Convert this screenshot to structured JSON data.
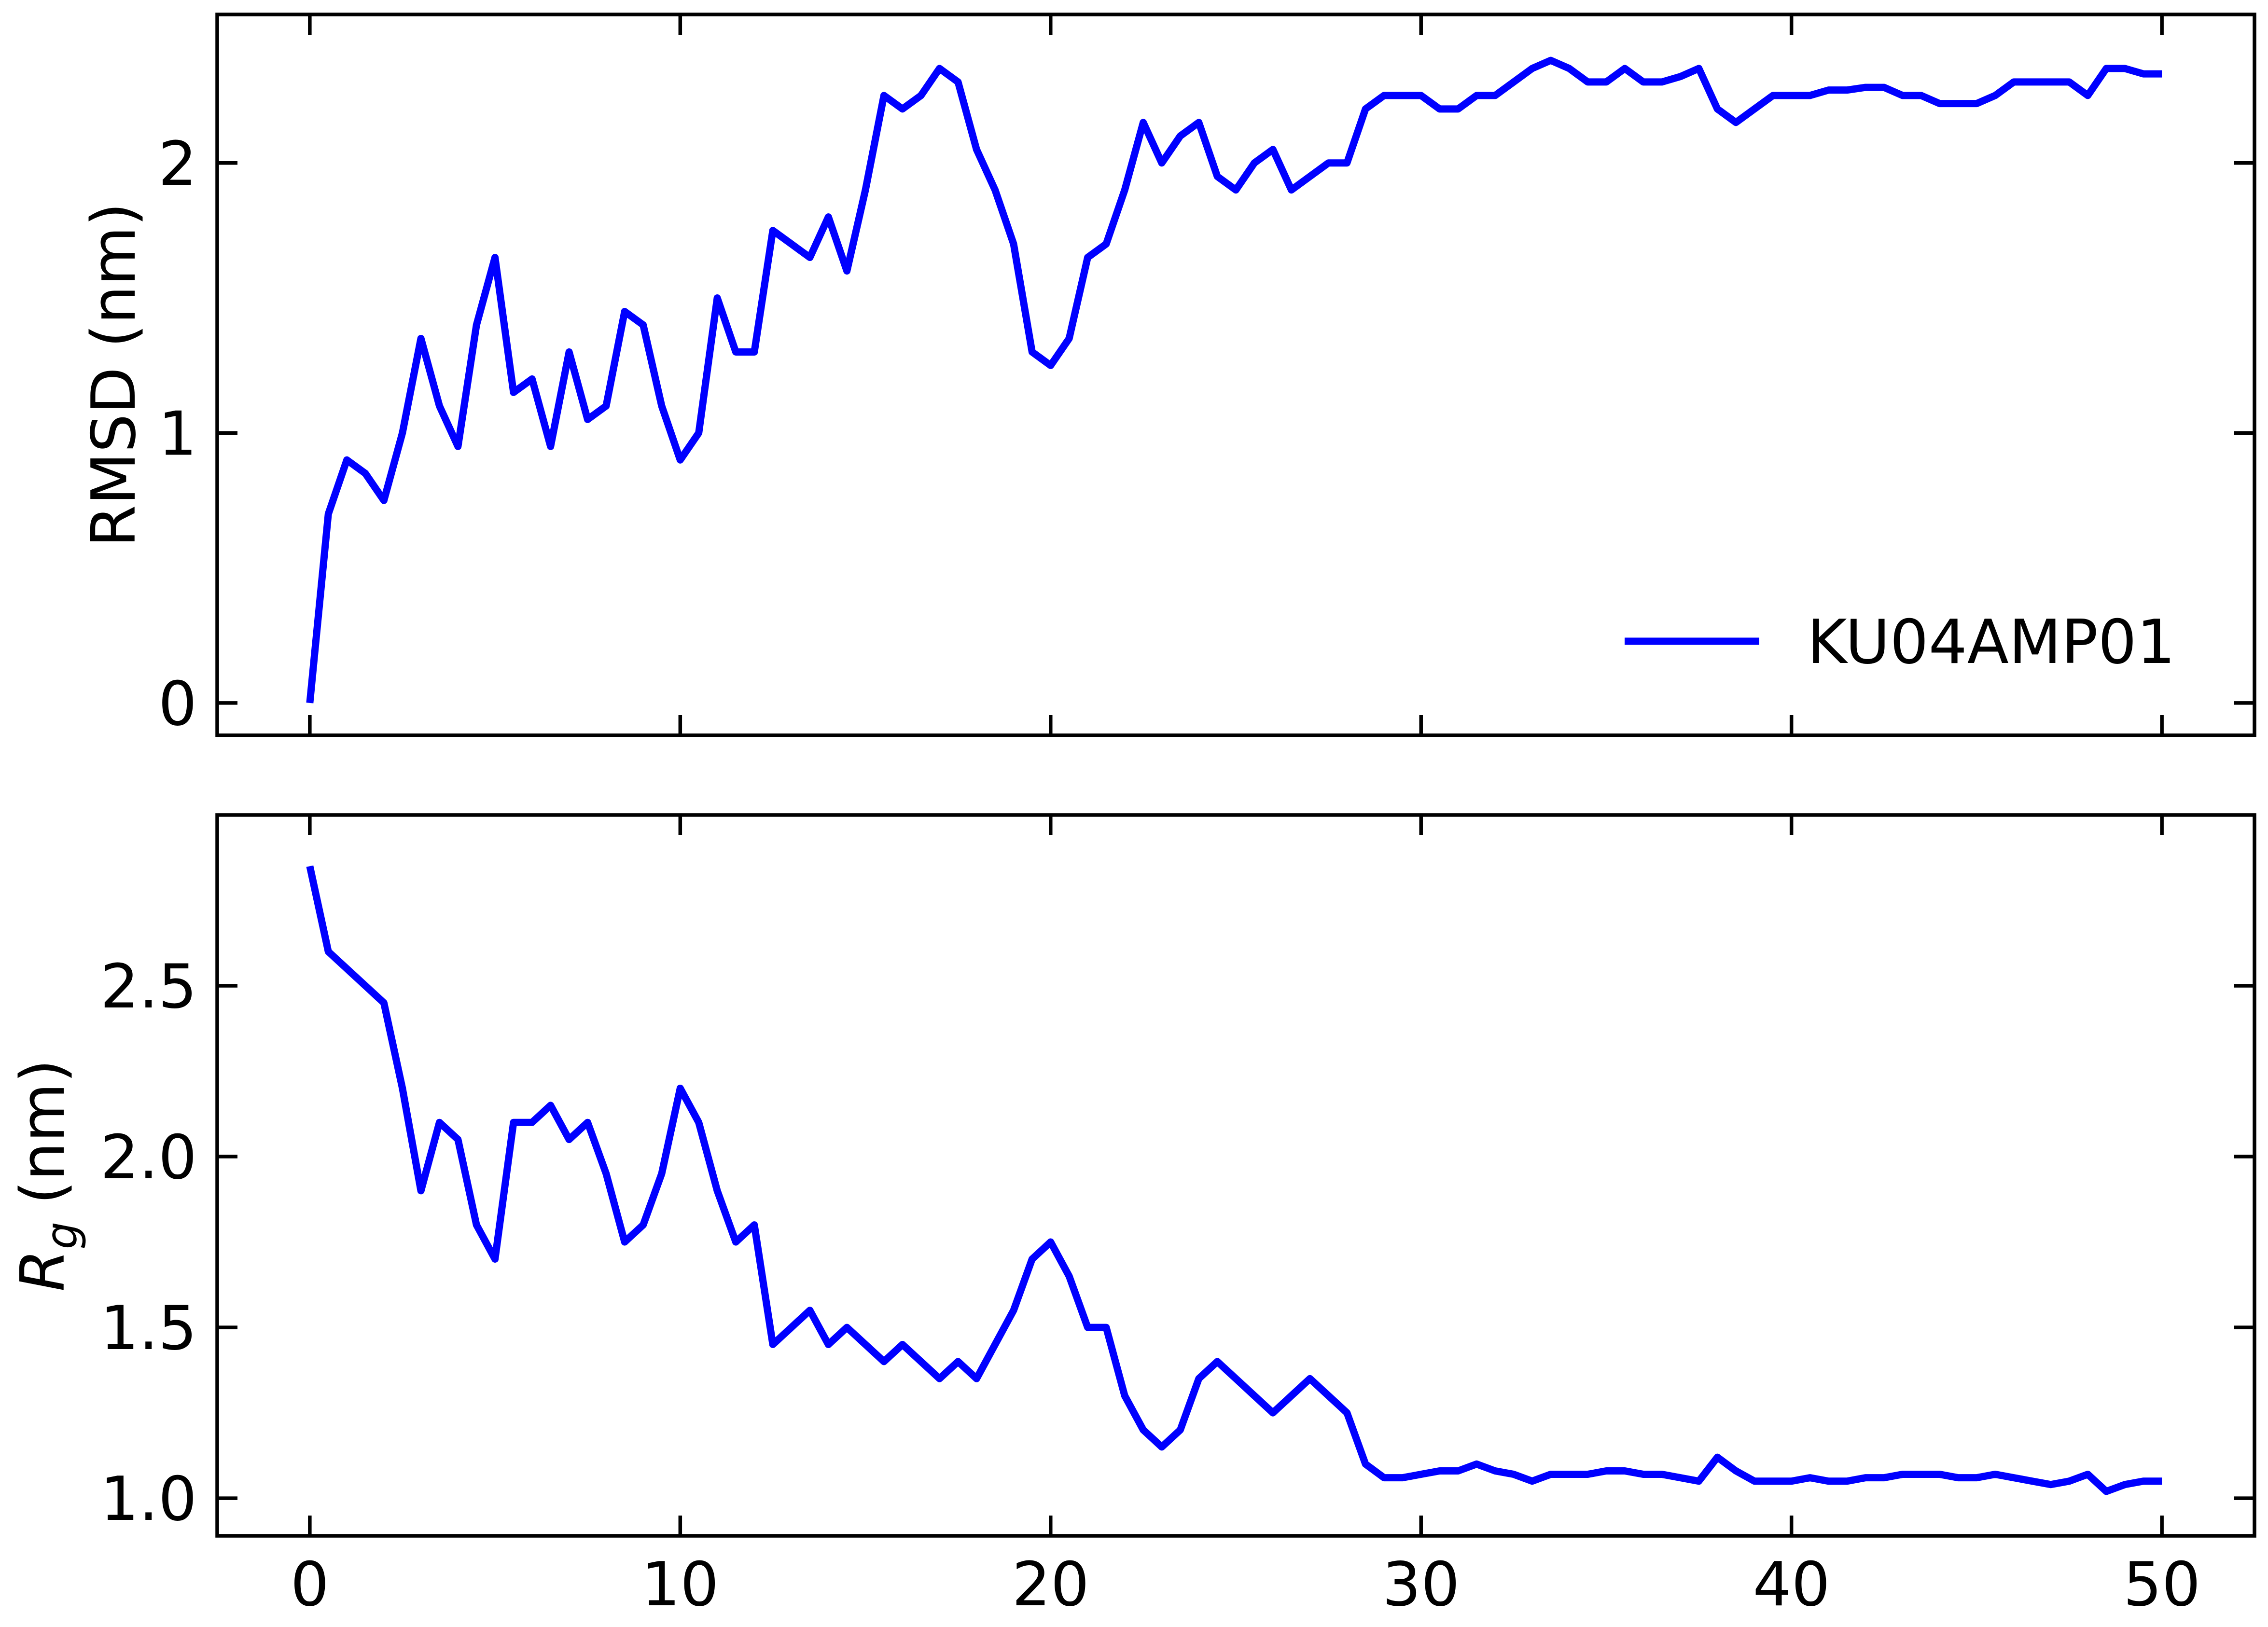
{
  "chart_data": [
    {
      "type": "line",
      "ylabel": "RMSD (nm)",
      "legend": "lower right",
      "xlim": [
        -2.5,
        52.5
      ],
      "xticks": [
        0,
        10,
        20,
        30,
        40,
        50
      ],
      "ylim": [
        -0.12,
        2.55
      ],
      "yticks": [
        0,
        1,
        2
      ],
      "x": [
        0,
        0.5,
        1,
        1.5,
        2,
        2.5,
        3,
        3.5,
        4,
        4.5,
        5,
        5.5,
        6,
        6.5,
        7,
        7.5,
        8,
        8.5,
        9,
        9.5,
        10,
        10.5,
        11,
        11.5,
        12,
        12.5,
        13,
        13.5,
        14,
        14.5,
        15,
        15.5,
        16,
        16.5,
        17,
        17.5,
        18,
        18.5,
        19,
        19.5,
        20,
        20.5,
        21,
        21.5,
        22,
        22.5,
        23,
        23.5,
        24,
        24.5,
        25,
        25.5,
        26,
        26.5,
        27,
        27.5,
        28,
        28.5,
        29,
        29.5,
        30,
        30.5,
        31,
        31.5,
        32,
        32.5,
        33,
        33.5,
        34,
        34.5,
        35,
        35.5,
        36,
        36.5,
        37,
        37.5,
        38,
        38.5,
        39,
        39.5,
        40,
        40.5,
        41,
        41.5,
        42,
        42.5,
        43,
        43.5,
        44,
        44.5,
        45,
        45.5,
        46,
        46.5,
        47,
        47.5,
        48,
        48.5,
        49,
        49.5,
        50
      ],
      "series": [
        {
          "name": "KU04AMP01",
          "color": "#0000ff",
          "values": [
            0,
            0.7,
            0.9,
            0.85,
            0.75,
            1.0,
            1.35,
            1.1,
            0.95,
            1.4,
            1.65,
            1.15,
            1.2,
            0.95,
            1.3,
            1.05,
            1.1,
            1.45,
            1.4,
            1.1,
            0.9,
            1.0,
            1.5,
            1.3,
            1.3,
            1.75,
            1.7,
            1.65,
            1.8,
            1.6,
            1.9,
            2.25,
            2.2,
            2.25,
            2.35,
            2.3,
            2.05,
            1.9,
            1.7,
            1.3,
            1.25,
            1.35,
            1.65,
            1.7,
            1.9,
            2.15,
            2.0,
            2.1,
            2.15,
            1.95,
            1.9,
            2.0,
            2.05,
            1.9,
            1.95,
            2.0,
            2.0,
            2.2,
            2.25,
            2.25,
            2.25,
            2.2,
            2.2,
            2.25,
            2.25,
            2.3,
            2.35,
            2.38,
            2.35,
            2.3,
            2.3,
            2.35,
            2.3,
            2.3,
            2.32,
            2.35,
            2.2,
            2.15,
            2.2,
            2.25,
            2.25,
            2.25,
            2.27,
            2.27,
            2.28,
            2.28,
            2.25,
            2.25,
            2.22,
            2.22,
            2.22,
            2.25,
            2.3,
            2.3,
            2.3,
            2.3,
            2.25,
            2.35,
            2.35,
            2.33,
            2.33
          ]
        }
      ]
    },
    {
      "type": "line",
      "ylabel": [
        "R",
        "g",
        "(nm)"
      ],
      "xlim": [
        -2.5,
        52.5
      ],
      "xticks": [
        0,
        10,
        20,
        30,
        40,
        50
      ],
      "ylim": [
        0.89,
        3.0
      ],
      "yticks": [
        {
          "value": 1,
          "label": "1.0"
        },
        1.5,
        {
          "value": 2,
          "label": "2.0"
        },
        2.5
      ],
      "x": [
        0,
        0.5,
        1,
        1.5,
        2,
        2.5,
        3,
        3.5,
        4,
        4.5,
        5,
        5.5,
        6,
        6.5,
        7,
        7.5,
        8,
        8.5,
        9,
        9.5,
        10,
        10.5,
        11,
        11.5,
        12,
        12.5,
        13,
        13.5,
        14,
        14.5,
        15,
        15.5,
        16,
        16.5,
        17,
        17.5,
        18,
        18.5,
        19,
        19.5,
        20,
        20.5,
        21,
        21.5,
        22,
        22.5,
        23,
        23.5,
        24,
        24.5,
        25,
        25.5,
        26,
        26.5,
        27,
        27.5,
        28,
        28.5,
        29,
        29.5,
        30,
        30.5,
        31,
        31.5,
        32,
        32.5,
        33,
        33.5,
        34,
        34.5,
        35,
        35.5,
        36,
        36.5,
        37,
        37.5,
        38,
        38.5,
        39,
        39.5,
        40,
        40.5,
        41,
        41.5,
        42,
        42.5,
        43,
        43.5,
        44,
        44.5,
        45,
        45.5,
        46,
        46.5,
        47,
        47.5,
        48,
        48.5,
        49,
        49.5,
        50
      ],
      "series": [
        {
          "color": "#0000ff",
          "values": [
            2.85,
            2.6,
            2.55,
            2.5,
            2.45,
            2.2,
            1.9,
            2.1,
            2.05,
            1.8,
            1.7,
            2.1,
            2.1,
            2.15,
            2.05,
            2.1,
            1.95,
            1.75,
            1.8,
            1.95,
            2.2,
            2.1,
            1.9,
            1.75,
            1.8,
            1.45,
            1.5,
            1.55,
            1.45,
            1.5,
            1.45,
            1.4,
            1.45,
            1.4,
            1.35,
            1.4,
            1.35,
            1.45,
            1.55,
            1.7,
            1.75,
            1.65,
            1.5,
            1.5,
            1.3,
            1.2,
            1.15,
            1.2,
            1.35,
            1.4,
            1.35,
            1.3,
            1.25,
            1.3,
            1.35,
            1.3,
            1.25,
            1.1,
            1.06,
            1.06,
            1.07,
            1.08,
            1.08,
            1.1,
            1.08,
            1.07,
            1.05,
            1.07,
            1.07,
            1.07,
            1.08,
            1.08,
            1.07,
            1.07,
            1.06,
            1.05,
            1.12,
            1.08,
            1.05,
            1.05,
            1.05,
            1.06,
            1.05,
            1.05,
            1.06,
            1.06,
            1.07,
            1.07,
            1.07,
            1.06,
            1.06,
            1.07,
            1.06,
            1.05,
            1.04,
            1.05,
            1.07,
            1.02,
            1.04,
            1.05,
            1.05
          ]
        }
      ]
    }
  ]
}
